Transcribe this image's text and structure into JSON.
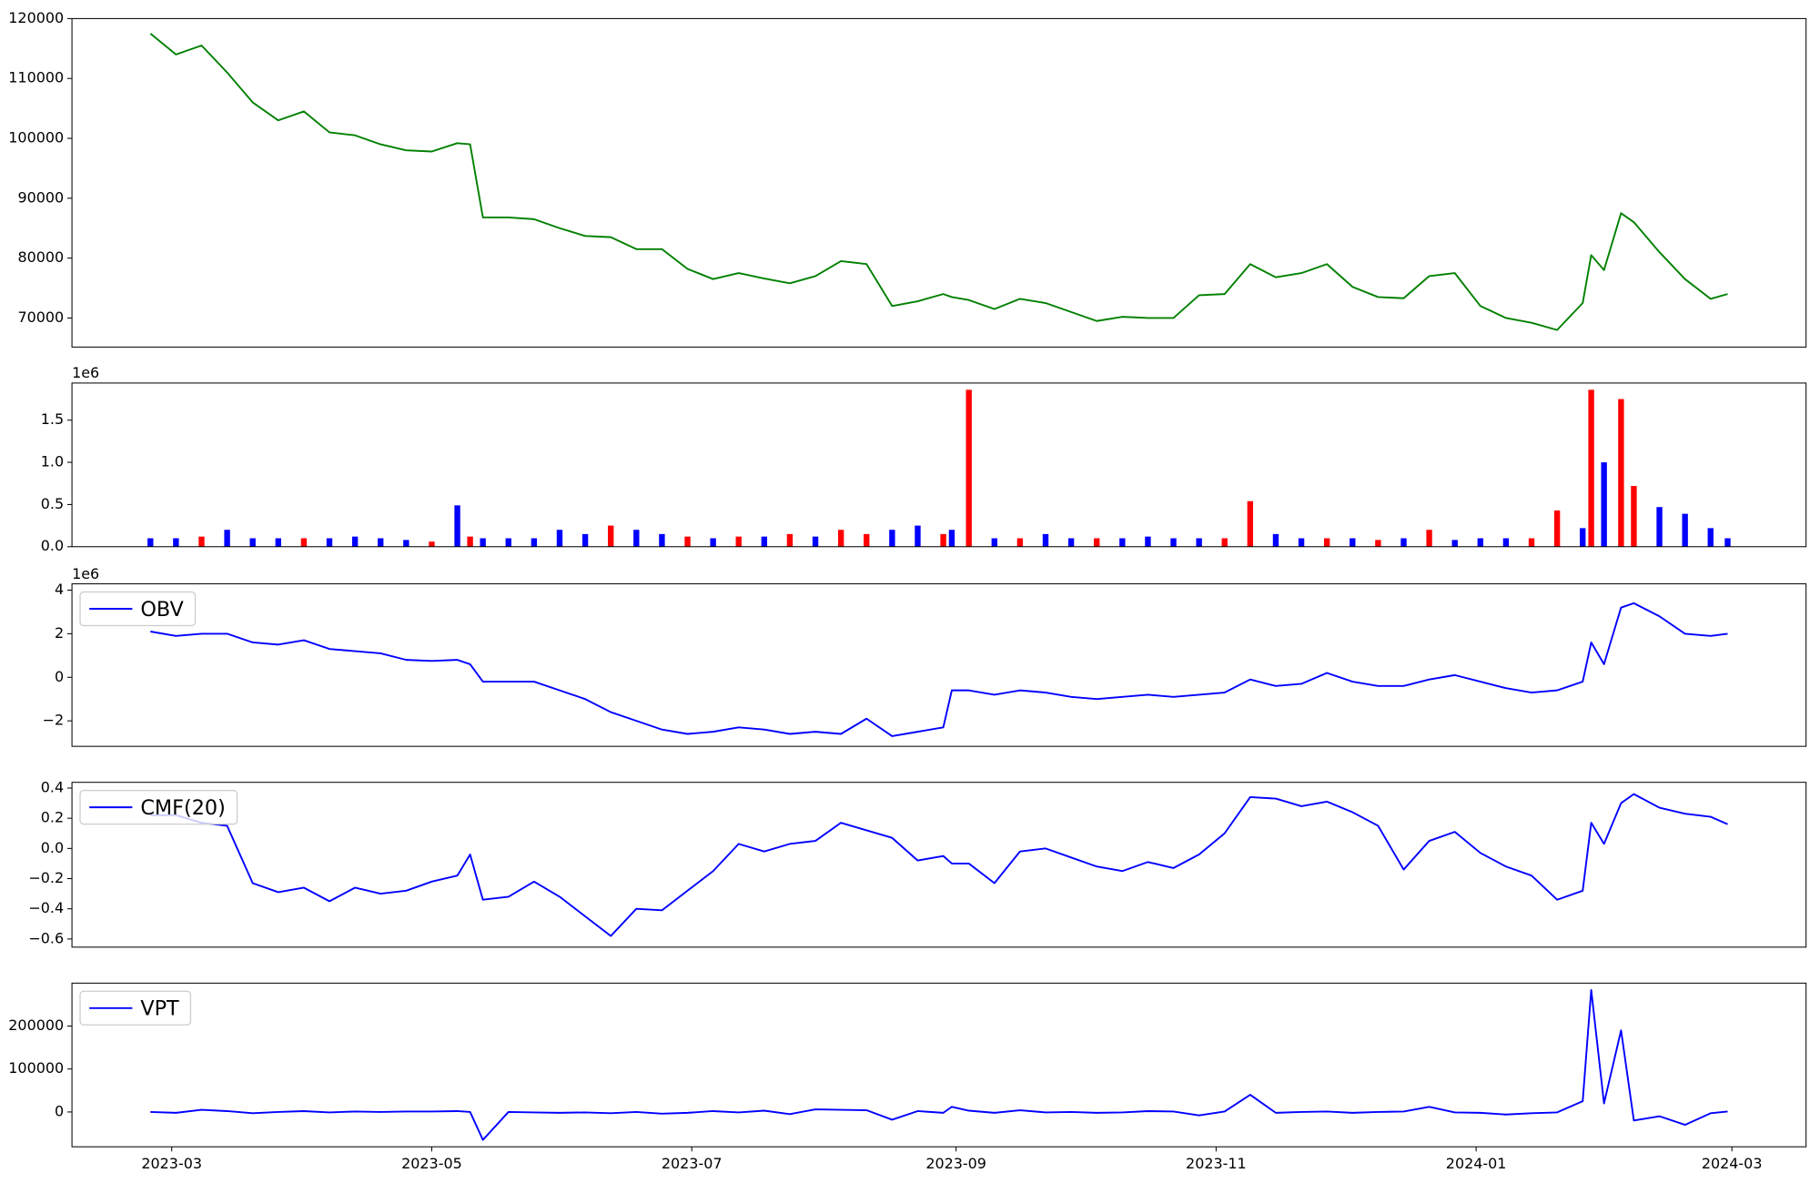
{
  "chart_data": [
    {
      "type": "line",
      "color": "#008000",
      "x": [
        54,
        60,
        66,
        72,
        78,
        84,
        90,
        96,
        102,
        108,
        114,
        120,
        126,
        129,
        132,
        138,
        144,
        150,
        156,
        162,
        168,
        174,
        180,
        186,
        192,
        198,
        204,
        210,
        216,
        222,
        228,
        234,
        240,
        242,
        246,
        252,
        258,
        264,
        270,
        276,
        282,
        288,
        294,
        300,
        306,
        312,
        318,
        324,
        330,
        336,
        342,
        348,
        354,
        360,
        366,
        372,
        378,
        384,
        390,
        392,
        395,
        399,
        402,
        408,
        414,
        420,
        424
      ],
      "values": [
        117500,
        114000,
        115500,
        111000,
        106000,
        103000,
        104500,
        101000,
        100500,
        99000,
        98000,
        97800,
        99200,
        99000,
        86800,
        86800,
        86500,
        85000,
        83700,
        83500,
        81500,
        81500,
        78200,
        76500,
        77500,
        76600,
        75800,
        77000,
        79500,
        79000,
        72000,
        72800,
        74000,
        73500,
        73000,
        71500,
        73200,
        72500,
        71000,
        69500,
        70200,
        70000,
        70000,
        73800,
        74000,
        79000,
        76800,
        77500,
        79000,
        75200,
        73500,
        73300,
        77000,
        77500,
        72000,
        70000,
        69200,
        68000,
        72500,
        80500,
        78000,
        87500,
        86000,
        81000,
        76500,
        73200,
        74000
      ],
      "xlim": [
        35.6,
        442.4
      ],
      "ylim": [
        65150,
        120000
      ],
      "yticks": [
        70000,
        80000,
        90000,
        100000,
        110000,
        120000
      ]
    },
    {
      "type": "bar",
      "offset_text": "1e6",
      "x": [
        54,
        60,
        66,
        72,
        78,
        84,
        90,
        96,
        102,
        108,
        114,
        120,
        126,
        129,
        132,
        138,
        144,
        150,
        156,
        162,
        168,
        174,
        180,
        186,
        192,
        198,
        204,
        210,
        216,
        222,
        228,
        234,
        240,
        242,
        246,
        252,
        258,
        264,
        270,
        276,
        282,
        288,
        294,
        300,
        306,
        312,
        318,
        324,
        330,
        336,
        342,
        348,
        354,
        360,
        366,
        372,
        378,
        384,
        390,
        392,
        395,
        399,
        402,
        408,
        414,
        420,
        424
      ],
      "values": [
        0.1,
        0.1,
        0.12,
        0.2,
        0.1,
        0.1,
        0.1,
        0.1,
        0.12,
        0.1,
        0.08,
        0.06,
        0.49,
        0.12,
        0.1,
        0.1,
        0.1,
        0.2,
        0.15,
        0.25,
        0.2,
        0.15,
        0.12,
        0.1,
        0.12,
        0.12,
        0.15,
        0.12,
        0.2,
        0.15,
        0.2,
        0.25,
        0.15,
        0.2,
        1.86,
        0.1,
        0.1,
        0.15,
        0.1,
        0.1,
        0.1,
        0.12,
        0.1,
        0.1,
        0.1,
        0.54,
        0.15,
        0.1,
        0.1,
        0.1,
        0.08,
        0.1,
        0.2,
        0.08,
        0.1,
        0.1,
        0.1,
        0.43,
        0.22,
        1.86,
        1.0,
        1.75,
        0.72,
        0.47,
        0.39,
        0.22,
        0.1
      ],
      "colors": [
        "#0000ff",
        "#0000ff",
        "#ff0000",
        "#0000ff",
        "#0000ff",
        "#0000ff",
        "#ff0000",
        "#0000ff",
        "#0000ff",
        "#0000ff",
        "#0000ff",
        "#ff0000",
        "#0000ff",
        "#ff0000",
        "#0000ff",
        "#0000ff",
        "#0000ff",
        "#0000ff",
        "#0000ff",
        "#ff0000",
        "#0000ff",
        "#0000ff",
        "#ff0000",
        "#0000ff",
        "#ff0000",
        "#0000ff",
        "#ff0000",
        "#0000ff",
        "#ff0000",
        "#ff0000",
        "#0000ff",
        "#0000ff",
        "#ff0000",
        "#0000ff",
        "#ff0000",
        "#0000ff",
        "#ff0000",
        "#0000ff",
        "#0000ff",
        "#ff0000",
        "#0000ff",
        "#0000ff",
        "#0000ff",
        "#0000ff",
        "#ff0000",
        "#ff0000",
        "#0000ff",
        "#0000ff",
        "#ff0000",
        "#0000ff",
        "#ff0000",
        "#0000ff",
        "#ff0000",
        "#0000ff",
        "#0000ff",
        "#0000ff",
        "#ff0000",
        "#ff0000",
        "#0000ff",
        "#ff0000",
        "#0000ff",
        "#ff0000",
        "#ff0000",
        "#0000ff",
        "#0000ff",
        "#0000ff",
        "#0000ff"
      ],
      "xlim": [
        35.6,
        442.4
      ],
      "ylim": [
        0,
        1.94
      ],
      "yticks": [
        {
          "value": 0,
          "label": "0.0"
        },
        0.5,
        {
          "value": 1,
          "label": "1.0"
        },
        1.5
      ]
    },
    {
      "type": "line",
      "offset_text": "1e6",
      "legend": "upper left",
      "x": [
        54,
        60,
        66,
        72,
        78,
        84,
        90,
        96,
        102,
        108,
        114,
        120,
        126,
        129,
        132,
        138,
        144,
        150,
        156,
        162,
        168,
        174,
        180,
        186,
        192,
        198,
        204,
        210,
        216,
        222,
        228,
        234,
        240,
        242,
        246,
        252,
        258,
        264,
        270,
        276,
        282,
        288,
        294,
        300,
        306,
        312,
        318,
        324,
        330,
        336,
        342,
        348,
        354,
        360,
        366,
        372,
        378,
        384,
        390,
        392,
        395,
        399,
        402,
        408,
        414,
        420,
        424
      ],
      "series": [
        {
          "name": "OBV",
          "color": "#0000ff",
          "values": [
            2.1,
            1.9,
            2.0,
            2.0,
            1.6,
            1.5,
            1.7,
            1.3,
            1.2,
            1.1,
            0.8,
            0.75,
            0.8,
            0.6,
            -0.2,
            -0.2,
            -0.2,
            -0.6,
            -1.0,
            -1.6,
            -2.0,
            -2.4,
            -2.6,
            -2.5,
            -2.3,
            -2.4,
            -2.6,
            -2.5,
            -2.6,
            -1.9,
            -2.7,
            -2.5,
            -2.3,
            -0.6,
            -0.6,
            -0.8,
            -0.6,
            -0.7,
            -0.9,
            -1.0,
            -0.9,
            -0.8,
            -0.9,
            -0.8,
            -0.7,
            -0.1,
            -0.4,
            -0.3,
            0.2,
            -0.2,
            -0.4,
            -0.4,
            -0.1,
            0.1,
            -0.2,
            -0.5,
            -0.7,
            -0.6,
            -0.2,
            1.6,
            0.6,
            3.2,
            3.4,
            2.8,
            2.0,
            1.9,
            2.0
          ]
        }
      ],
      "xlim": [
        35.6,
        442.4
      ],
      "ylim": [
        -3.17,
        4.29
      ],
      "yticks": [
        {
          "value": -2,
          "label": "−2"
        },
        0,
        2,
        4
      ]
    },
    {
      "type": "line",
      "legend": "upper left",
      "x": [
        54,
        60,
        66,
        72,
        78,
        84,
        90,
        96,
        102,
        108,
        114,
        120,
        126,
        129,
        132,
        138,
        144,
        150,
        156,
        162,
        168,
        174,
        180,
        186,
        192,
        198,
        204,
        210,
        216,
        222,
        228,
        234,
        240,
        242,
        246,
        252,
        258,
        264,
        270,
        276,
        282,
        288,
        294,
        300,
        306,
        312,
        318,
        324,
        330,
        336,
        342,
        348,
        354,
        360,
        366,
        372,
        378,
        384,
        390,
        392,
        395,
        399,
        402,
        408,
        414,
        420,
        424
      ],
      "series": [
        {
          "name": "CMF(20)",
          "color": "#0000ff",
          "values": [
            0.22,
            0.22,
            0.17,
            0.15,
            -0.23,
            -0.29,
            -0.26,
            -0.35,
            -0.26,
            -0.3,
            -0.28,
            -0.22,
            -0.18,
            -0.04,
            -0.34,
            -0.32,
            -0.22,
            -0.32,
            -0.45,
            -0.58,
            -0.4,
            -0.41,
            -0.28,
            -0.15,
            0.03,
            -0.02,
            0.03,
            0.05,
            0.17,
            0.12,
            0.07,
            -0.08,
            -0.05,
            -0.1,
            -0.1,
            -0.23,
            -0.02,
            0.0,
            -0.06,
            -0.12,
            -0.15,
            -0.09,
            -0.13,
            -0.04,
            0.1,
            0.34,
            0.33,
            0.28,
            0.31,
            0.24,
            0.15,
            -0.14,
            0.05,
            0.11,
            -0.03,
            -0.12,
            -0.18,
            -0.34,
            -0.28,
            0.17,
            0.03,
            0.3,
            0.36,
            0.27,
            0.23,
            0.21,
            0.16
          ]
        }
      ],
      "xlim": [
        35.6,
        442.4
      ],
      "ylim": [
        -0.654,
        0.438
      ],
      "yticks": [
        {
          "value": -0.6,
          "label": "−0.6"
        },
        {
          "value": -0.4,
          "label": "−0.4"
        },
        {
          "value": -0.2,
          "label": "−0.2"
        },
        {
          "value": 0,
          "label": "0.0"
        },
        0.2,
        0.4
      ]
    },
    {
      "type": "line",
      "legend": "upper left",
      "x": [
        54,
        60,
        66,
        72,
        78,
        84,
        90,
        96,
        102,
        108,
        114,
        120,
        126,
        129,
        132,
        138,
        144,
        150,
        156,
        162,
        168,
        174,
        180,
        186,
        192,
        198,
        204,
        210,
        216,
        222,
        228,
        234,
        240,
        242,
        246,
        252,
        258,
        264,
        270,
        276,
        282,
        288,
        294,
        300,
        306,
        312,
        318,
        324,
        330,
        336,
        342,
        348,
        354,
        360,
        366,
        372,
        378,
        384,
        390,
        392,
        395,
        399,
        402,
        408,
        414,
        420,
        424
      ],
      "series": [
        {
          "name": "VPT",
          "color": "#0000ff",
          "values": [
            0,
            -2000,
            5000,
            2000,
            -3000,
            0,
            2000,
            -1000,
            1000,
            0,
            1000,
            1000,
            2000,
            0,
            -65000,
            0,
            -1000,
            -2000,
            -1000,
            -3000,
            0,
            -4000,
            -2000,
            2000,
            -1000,
            3000,
            -5000,
            6000,
            5000,
            4000,
            -18000,
            2000,
            -2000,
            12000,
            3000,
            -2000,
            4000,
            -1000,
            0,
            -2000,
            -1000,
            2000,
            1000,
            -8000,
            1000,
            40000,
            -2000,
            0,
            1000,
            -2000,
            0,
            1000,
            12000,
            -1000,
            -2000,
            -6000,
            -3000,
            -1000,
            25000,
            284000,
            20000,
            190000,
            -20000,
            -10000,
            -30000,
            -3000,
            1000
          ]
        }
      ],
      "xlim": [
        35.6,
        442.4
      ],
      "ylim": [
        -81100,
        300000
      ],
      "yticks": [
        0,
        100000,
        200000
      ],
      "xticks": [
        {
          "value": 59,
          "label": "2023-03"
        },
        {
          "value": 120,
          "label": "2023-05"
        },
        {
          "value": 181,
          "label": "2023-07"
        },
        {
          "value": 243,
          "label": "2023-09"
        },
        {
          "value": 304,
          "label": "2023-11"
        },
        {
          "value": 365,
          "label": "2024-01"
        },
        {
          "value": 425,
          "label": "2024-03"
        }
      ]
    }
  ]
}
